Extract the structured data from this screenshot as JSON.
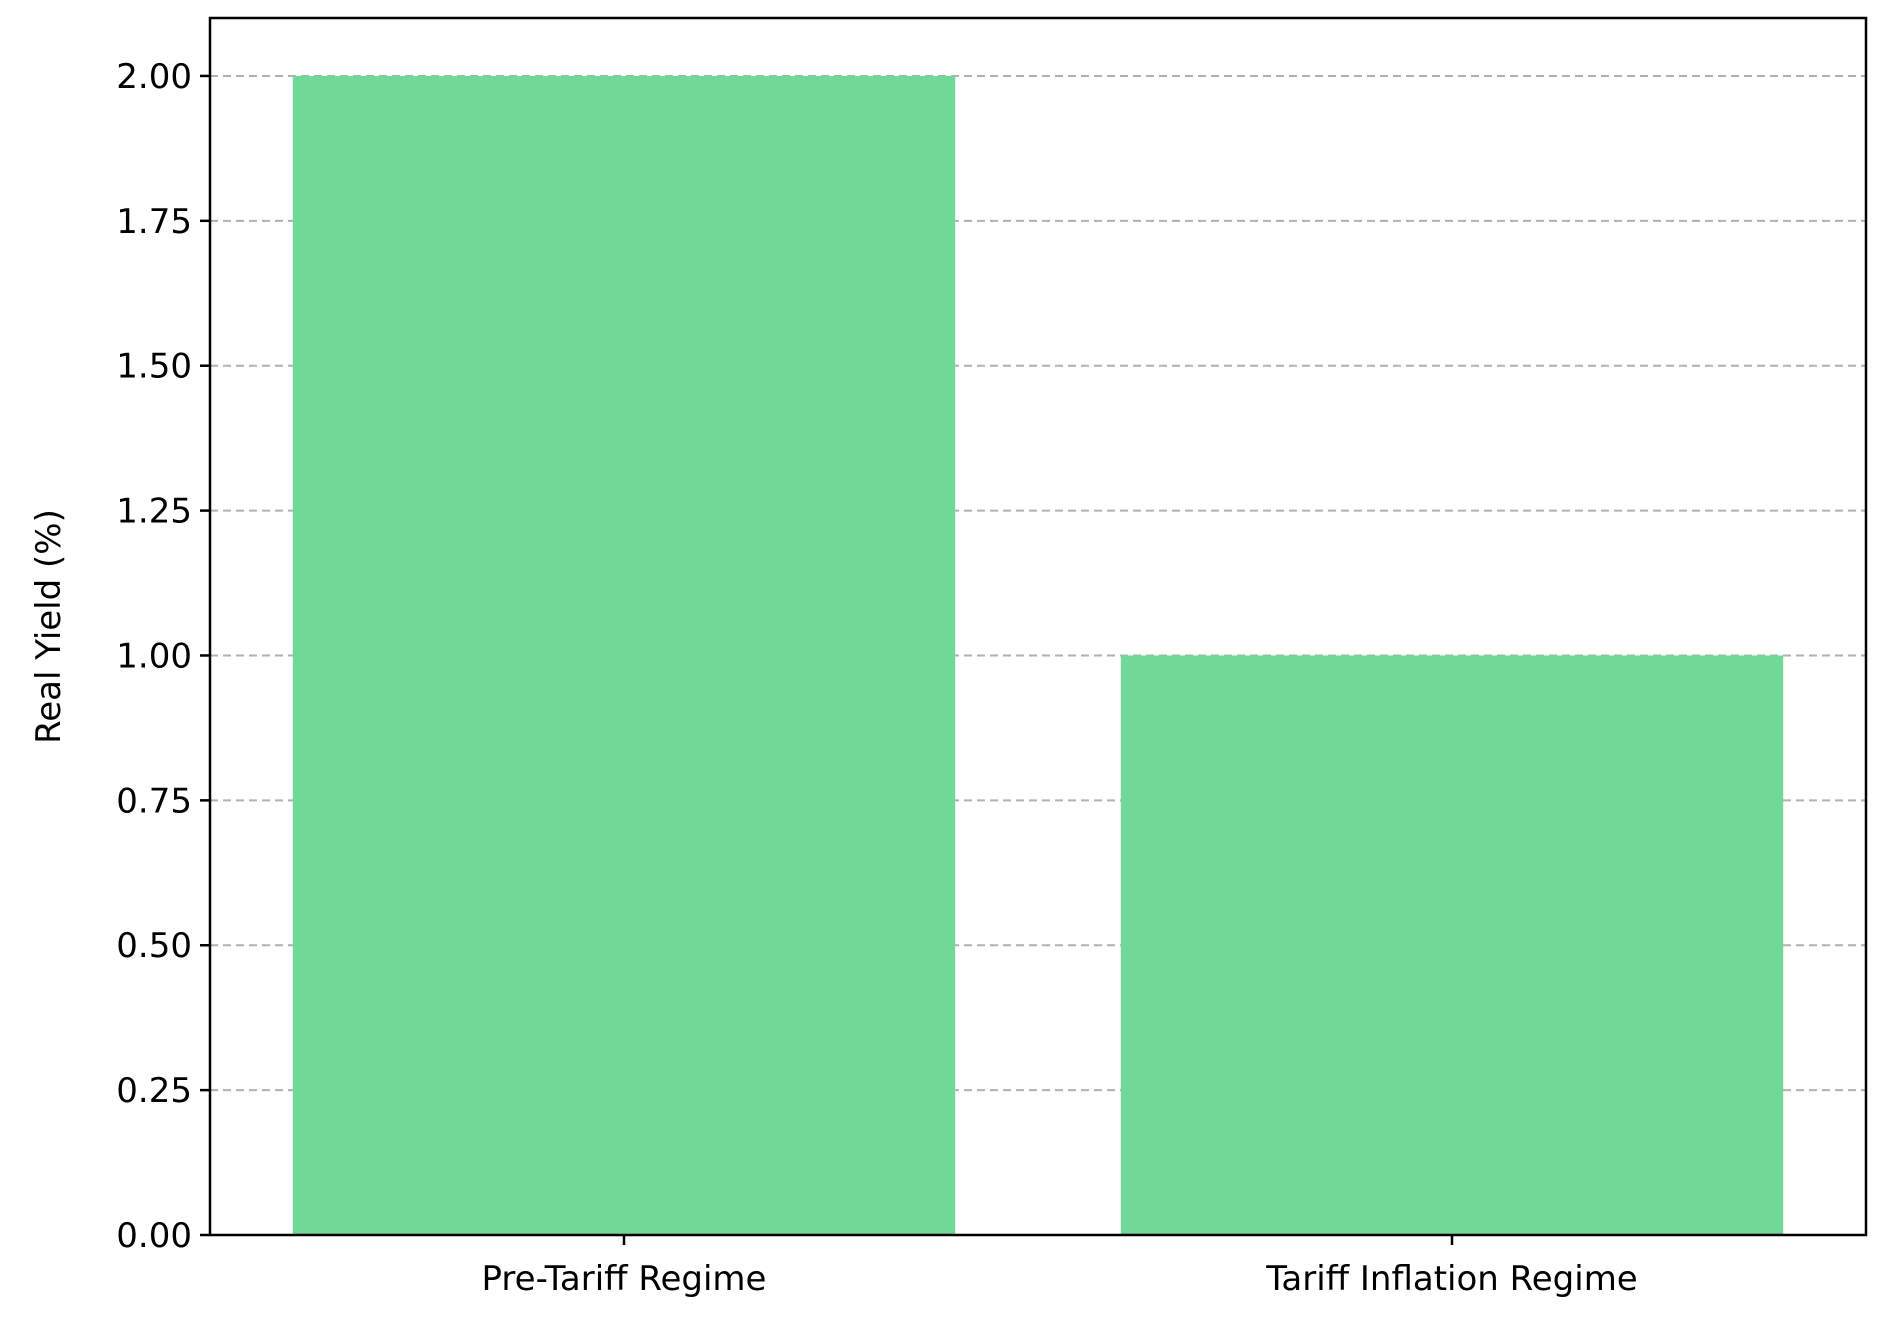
{
  "chart_data": {
    "type": "bar",
    "title": "",
    "xlabel": "",
    "ylabel": "Real Yield (%)",
    "categories": [
      "Pre-Tariff Regime",
      "Tariff Inflation Regime"
    ],
    "values": [
      2.0,
      1.0
    ],
    "ylim": [
      0,
      2.1
    ],
    "yticks": [
      "0.00",
      "0.25",
      "0.50",
      "0.75",
      "1.00",
      "1.25",
      "1.50",
      "1.75",
      "2.00"
    ],
    "grid": "y-axis dashed",
    "legend": "none",
    "colors": {
      "bar": "#71d898",
      "grid": "#b0b0b0",
      "axis": "#000000"
    }
  }
}
